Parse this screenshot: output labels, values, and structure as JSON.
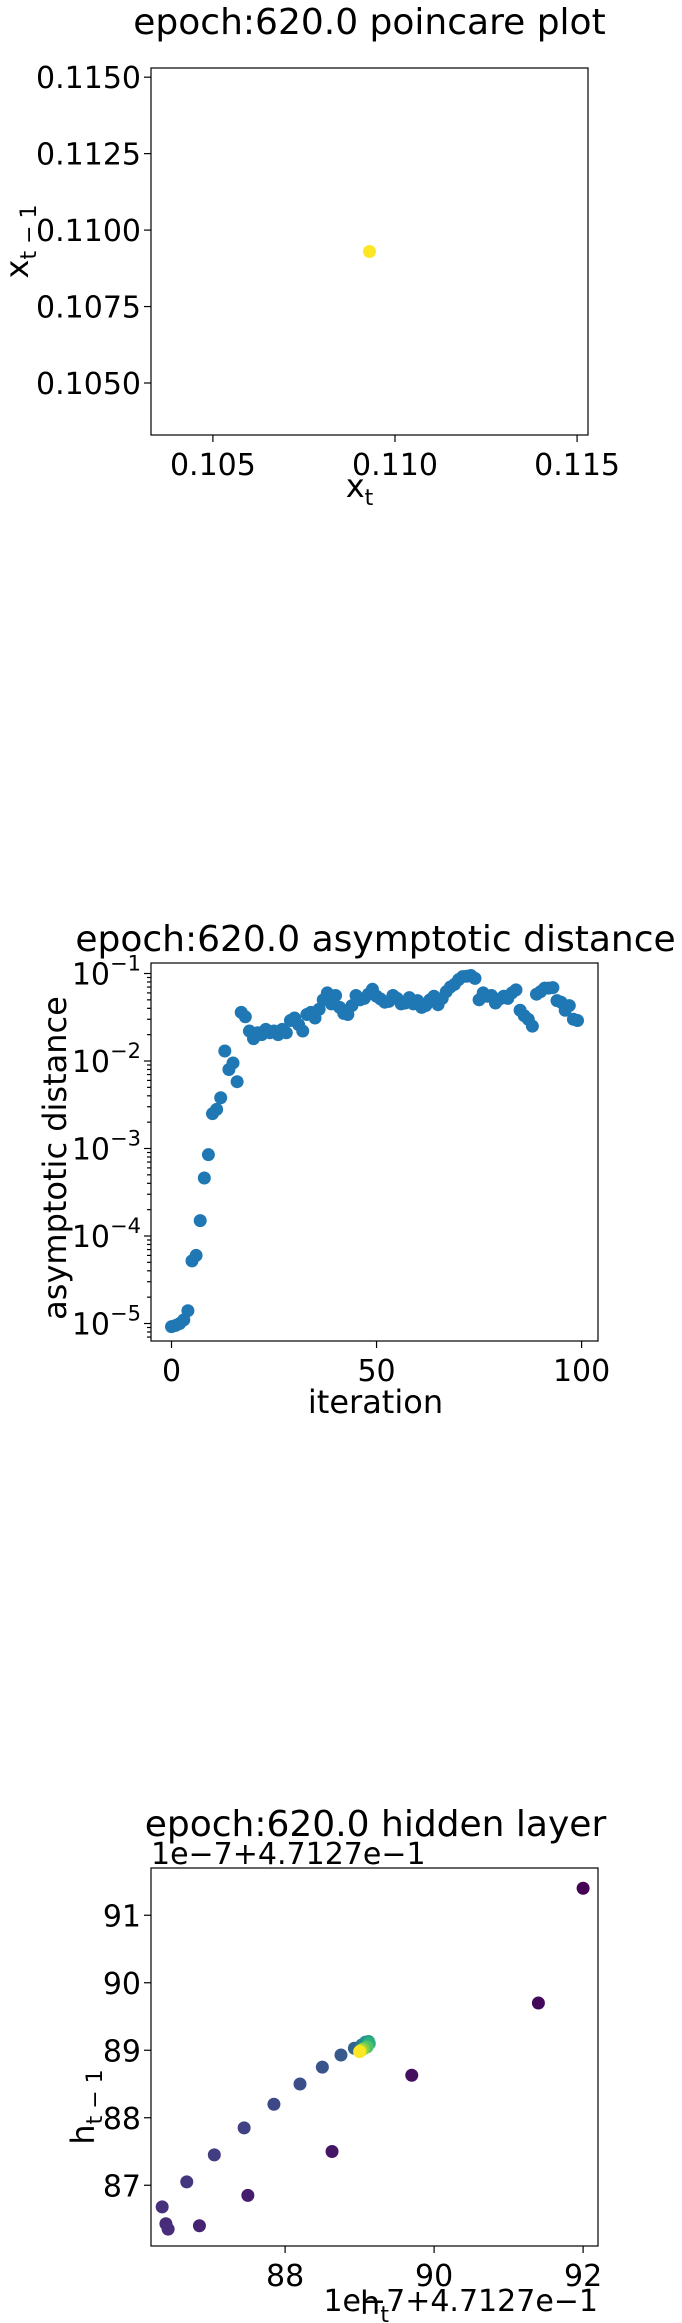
{
  "chart_data": [
    {
      "type": "scatter",
      "title": "epoch:620.0 poincare plot",
      "xlabel_main": "x",
      "xlabel_sub": "t",
      "ylabel_main": "x",
      "ylabel_sub": "t − 1",
      "xlim": [
        0.1033,
        0.1153
      ],
      "ylim": [
        0.1033,
        0.1153
      ],
      "xticks": [
        0.105,
        0.11,
        0.115
      ],
      "xtick_labels": [
        "0.105",
        "0.110",
        "0.115"
      ],
      "yticks": [
        0.105,
        0.1075,
        0.11,
        0.1125,
        0.115
      ],
      "ytick_labels": [
        "0.1050",
        "0.1075",
        "0.1100",
        "0.1125",
        "0.1150"
      ],
      "points": [
        {
          "x": 0.1093,
          "y": 0.1093,
          "color": "#fde725"
        }
      ]
    },
    {
      "type": "scatter",
      "title": "epoch:620.0 asymptotic distance",
      "xlabel": "iteration",
      "ylabel": "asymptotic distance",
      "yscale": "log",
      "xlim": [
        -5,
        104
      ],
      "ylim_log10": [
        -5.2,
        -0.88
      ],
      "xticks": [
        0,
        50,
        100
      ],
      "xtick_labels": [
        "0",
        "50",
        "100"
      ],
      "yticks_log10": [
        -5,
        -4,
        -3,
        -2,
        -1
      ],
      "ytick_exponents": [
        "−5",
        "−4",
        "−3",
        "−2",
        "−1"
      ],
      "point_color": "#1f77b4",
      "x": [
        0,
        1,
        2,
        3,
        4,
        5,
        6,
        7,
        8,
        9,
        10,
        11,
        12,
        13,
        14,
        15,
        16,
        17,
        18,
        19,
        20,
        21,
        22,
        23,
        24,
        25,
        26,
        27,
        28,
        29,
        30,
        31,
        32,
        33,
        34,
        35,
        36,
        37,
        38,
        39,
        40,
        41,
        42,
        43,
        44,
        45,
        46,
        47,
        48,
        49,
        50,
        51,
        52,
        53,
        54,
        55,
        56,
        57,
        58,
        59,
        60,
        61,
        62,
        63,
        64,
        65,
        66,
        67,
        68,
        69,
        70,
        71,
        72,
        73,
        74,
        75,
        76,
        77,
        78,
        79,
        80,
        81,
        82,
        83,
        84,
        85,
        86,
        87,
        88,
        89,
        90,
        91,
        92,
        93,
        94,
        95,
        96,
        97,
        98,
        99
      ],
      "y": [
        9.2e-06,
        9.5e-06,
        1e-05,
        1.1e-05,
        1.4e-05,
        5.2e-05,
        6e-05,
        0.00015,
        0.00046,
        0.00085,
        0.0025,
        0.0028,
        0.0038,
        0.013,
        0.008,
        0.0095,
        0.0058,
        0.036,
        0.032,
        0.022,
        0.018,
        0.021,
        0.02,
        0.023,
        0.021,
        0.022,
        0.02,
        0.023,
        0.021,
        0.029,
        0.031,
        0.026,
        0.022,
        0.034,
        0.036,
        0.031,
        0.039,
        0.05,
        0.06,
        0.045,
        0.056,
        0.041,
        0.035,
        0.034,
        0.043,
        0.056,
        0.05,
        0.052,
        0.058,
        0.066,
        0.055,
        0.051,
        0.047,
        0.048,
        0.056,
        0.052,
        0.045,
        0.046,
        0.053,
        0.045,
        0.049,
        0.041,
        0.043,
        0.05,
        0.055,
        0.044,
        0.052,
        0.062,
        0.07,
        0.075,
        0.085,
        0.092,
        0.093,
        0.095,
        0.088,
        0.05,
        0.06,
        0.055,
        0.056,
        0.046,
        0.051,
        0.055,
        0.052,
        0.06,
        0.065,
        0.038,
        0.033,
        0.03,
        0.025,
        0.058,
        0.062,
        0.068,
        0.068,
        0.069,
        0.049,
        0.047,
        0.038,
        0.043,
        0.03,
        0.029
      ]
    },
    {
      "type": "scatter",
      "title": "epoch:620.0 hidden layer",
      "xlabel_main": "h",
      "xlabel_sub": "t",
      "ylabel_main": "h",
      "ylabel_sub": "t − 1",
      "x_offset_text": "1e−7+4.7127e−1",
      "y_offset_text": "1e−7+4.7127e−1",
      "xlim": [
        86.2,
        92.2
      ],
      "ylim": [
        86.1,
        91.7
      ],
      "xticks": [
        88,
        90,
        92
      ],
      "xtick_labels": [
        "88",
        "90",
        "92"
      ],
      "yticks": [
        87,
        88,
        89,
        90,
        91
      ],
      "ytick_labels": [
        "87",
        "88",
        "89",
        "90",
        "91"
      ],
      "color_map": [
        "#440154",
        "#472c7a",
        "#3b518b",
        "#2c718e",
        "#21908d",
        "#27ad81",
        "#5cc863",
        "#aadc32",
        "#fde725"
      ],
      "points": [
        {
          "x": 92.0,
          "y": 91.4,
          "c": 0.0
        },
        {
          "x": 91.4,
          "y": 89.7,
          "c": 0.02
        },
        {
          "x": 89.7,
          "y": 88.63,
          "c": 0.04
        },
        {
          "x": 88.63,
          "y": 87.5,
          "c": 0.06
        },
        {
          "x": 87.5,
          "y": 86.85,
          "c": 0.08
        },
        {
          "x": 86.85,
          "y": 86.4,
          "c": 0.1
        },
        {
          "x": 86.4,
          "y": 86.43,
          "c": 0.12
        },
        {
          "x": 86.43,
          "y": 86.35,
          "c": 0.13
        },
        {
          "x": 86.35,
          "y": 86.68,
          "c": 0.14
        },
        {
          "x": 86.68,
          "y": 87.05,
          "c": 0.16
        },
        {
          "x": 87.05,
          "y": 87.45,
          "c": 0.18
        },
        {
          "x": 87.45,
          "y": 87.85,
          "c": 0.2
        },
        {
          "x": 87.85,
          "y": 88.2,
          "c": 0.22
        },
        {
          "x": 88.2,
          "y": 88.5,
          "c": 0.24
        },
        {
          "x": 88.5,
          "y": 88.75,
          "c": 0.26
        },
        {
          "x": 88.75,
          "y": 88.93,
          "c": 0.28
        },
        {
          "x": 88.93,
          "y": 89.03,
          "c": 0.32
        },
        {
          "x": 89.03,
          "y": 89.08,
          "c": 0.4
        },
        {
          "x": 89.08,
          "y": 89.12,
          "c": 0.48
        },
        {
          "x": 89.12,
          "y": 89.13,
          "c": 0.56
        },
        {
          "x": 89.13,
          "y": 89.1,
          "c": 0.64
        },
        {
          "x": 89.1,
          "y": 89.05,
          "c": 0.72
        },
        {
          "x": 89.05,
          "y": 89.02,
          "c": 0.8
        },
        {
          "x": 89.02,
          "y": 89.0,
          "c": 0.88
        },
        {
          "x": 89.0,
          "y": 88.98,
          "c": 1.0
        }
      ]
    }
  ]
}
